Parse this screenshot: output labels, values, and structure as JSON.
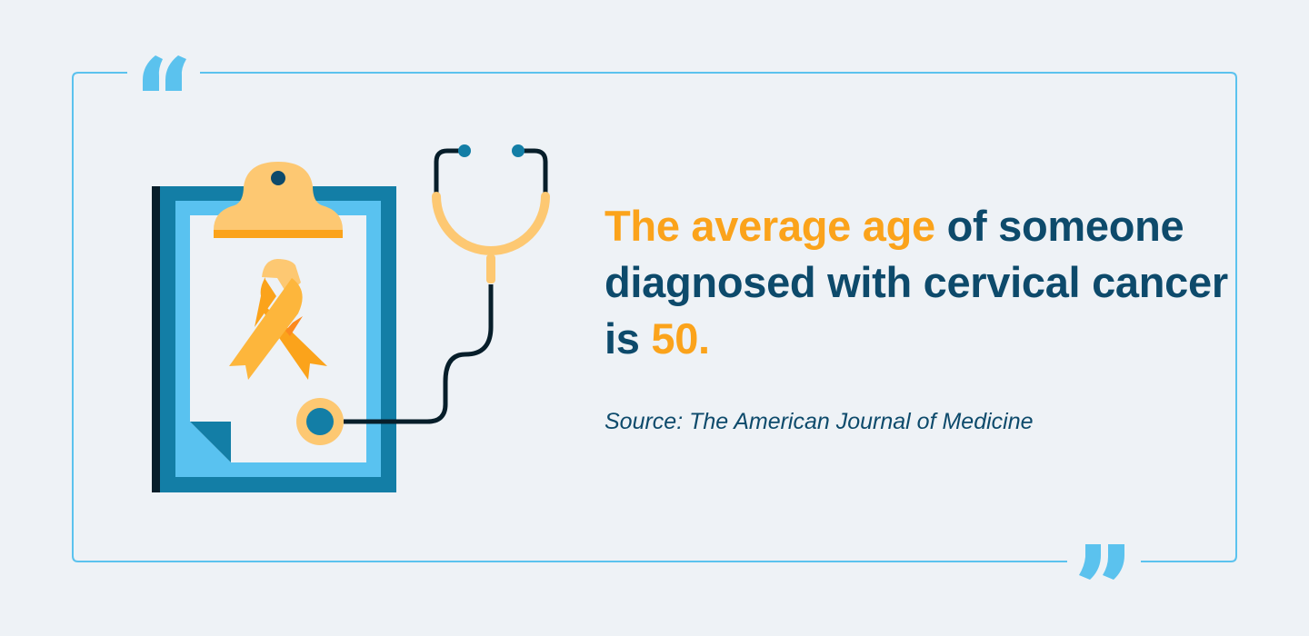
{
  "quote": {
    "highlight_start": "The average age",
    "text_middle": " of someone diagnosed with cervical cancer is ",
    "highlight_end": "50."
  },
  "source": "Source: The American Journal of Medicine",
  "colors": {
    "background": "#EEF2F6",
    "frame": "#5BC2EE",
    "highlight": "#FBA31B",
    "text": "#0D4A6B",
    "clipboard": "#137EA6",
    "paper_border": "#59C2F0",
    "ribbon": "#FDB63C"
  },
  "icons": [
    "open-quote-icon",
    "close-quote-icon",
    "clipboard-icon",
    "awareness-ribbon-icon",
    "stethoscope-icon"
  ]
}
